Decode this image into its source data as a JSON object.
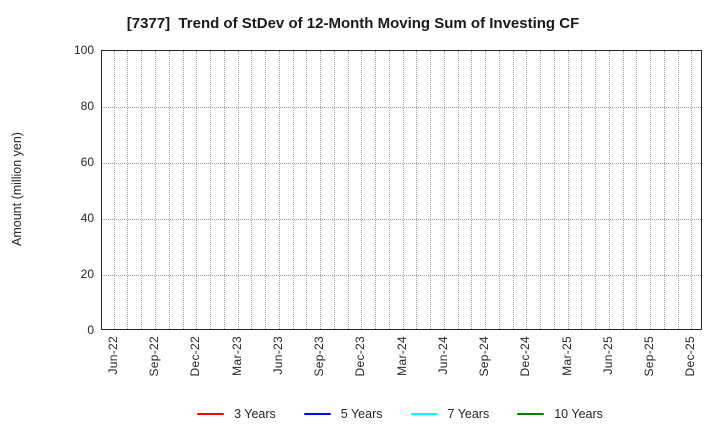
{
  "chart_data": {
    "type": "line",
    "title": "[7377]  Trend of StDev of 12-Month Moving Sum of Investing CF",
    "xlabel": "",
    "ylabel": "Amount (million yen)",
    "ylim": [
      0,
      100
    ],
    "yticks": [
      0,
      20,
      40,
      60,
      80,
      100
    ],
    "x_tick_labels": [
      "Jun-22",
      "Sep-22",
      "Dec-22",
      "Mar-23",
      "Jun-23",
      "Sep-23",
      "Dec-23",
      "Mar-24",
      "Jun-24",
      "Sep-24",
      "Dec-24",
      "Mar-25",
      "Jun-25",
      "Sep-25",
      "Dec-25"
    ],
    "x_months_total": 43,
    "x_label_every_n_months": 3,
    "grid": true,
    "grid_style": "dotted",
    "grid_color": "#ababab",
    "axis_color": "#262626",
    "legend_position": "bottom",
    "series": [
      {
        "name": "3 Years",
        "color": "#ff0000",
        "values": []
      },
      {
        "name": "5 Years",
        "color": "#0000ff",
        "values": []
      },
      {
        "name": "7 Years",
        "color": "#00ffff",
        "values": []
      },
      {
        "name": "10 Years",
        "color": "#008000",
        "values": []
      }
    ]
  }
}
